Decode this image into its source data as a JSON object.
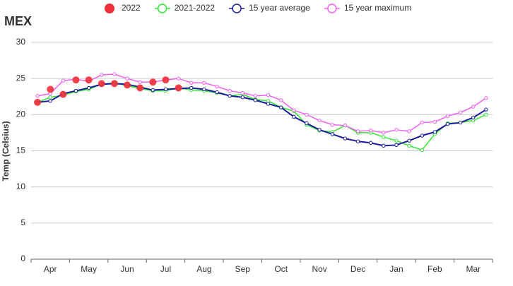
{
  "chart_data": {
    "type": "line",
    "title": "MEX",
    "y_label": "Temp (Celsius)",
    "categories": [
      null,
      "Apr",
      null,
      null,
      "May",
      null,
      null,
      "Jun",
      null,
      null,
      "Jul",
      null,
      null,
      "Aug",
      null,
      null,
      "Sep",
      null,
      null,
      "Oct",
      null,
      null,
      "Nov",
      null,
      null,
      "Dec",
      null,
      null,
      "Jan",
      null,
      null,
      "Feb",
      null,
      null,
      "Mar",
      null
    ],
    "series": [
      {
        "name": "2022",
        "color": "#f0303a",
        "markers_only": true,
        "values": [
          21.7,
          23.5,
          22.8,
          24.8,
          24.8,
          24.3,
          24.3,
          24.1,
          23.7,
          24.5,
          24.8,
          23.7,
          null,
          null,
          null,
          null,
          null,
          null,
          null,
          null,
          null,
          null,
          null,
          null,
          null,
          null,
          null,
          null,
          null,
          null,
          null,
          null,
          null,
          null,
          null,
          null
        ]
      },
      {
        "name": "2021-2022",
        "color": "#33e833",
        "values": [
          21.7,
          22.4,
          22.7,
          23.2,
          23.5,
          24.2,
          24.4,
          24.0,
          23.6,
          23.3,
          23.3,
          23.7,
          23.4,
          23.3,
          23.0,
          22.6,
          22.8,
          22.1,
          21.9,
          21.0,
          20.5,
          18.6,
          17.8,
          17.6,
          18.5,
          17.5,
          17.5,
          16.9,
          16.4,
          15.7,
          15.1,
          17.3,
          18.8,
          18.9,
          19.2,
          20.0
        ]
      },
      {
        "name": "15 year average",
        "color": "#1a1a9e",
        "values": [
          21.7,
          21.9,
          22.9,
          23.3,
          23.7,
          24.2,
          24.3,
          24.2,
          23.8,
          23.4,
          23.5,
          23.6,
          23.7,
          23.5,
          23.1,
          22.6,
          22.4,
          22.0,
          21.5,
          21.0,
          19.7,
          18.8,
          17.9,
          17.3,
          16.7,
          16.3,
          16.1,
          15.7,
          15.8,
          16.4,
          17.1,
          17.6,
          18.7,
          18.9,
          19.6,
          20.7
        ]
      },
      {
        "name": "15 year maximum",
        "color": "#f060f0",
        "values": [
          22.6,
          22.9,
          24.7,
          24.9,
          24.6,
          25.5,
          25.6,
          25.0,
          24.5,
          24.5,
          24.8,
          25.0,
          24.4,
          24.4,
          23.9,
          23.3,
          23.0,
          22.6,
          22.7,
          22.0,
          20.6,
          20.0,
          19.2,
          18.6,
          18.5,
          17.7,
          17.8,
          17.5,
          17.9,
          17.7,
          18.9,
          19.0,
          19.8,
          20.3,
          21.1,
          22.3
        ]
      }
    ],
    "ylim": [
      0,
      30
    ],
    "yticks": [
      0,
      5,
      10,
      15,
      20,
      25,
      30
    ],
    "grid": true
  }
}
